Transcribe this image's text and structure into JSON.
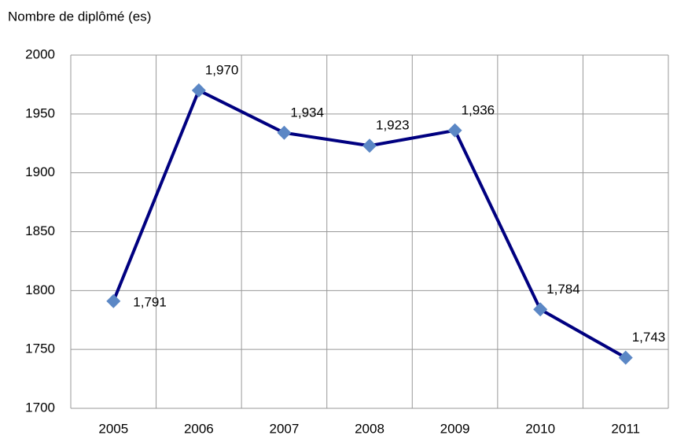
{
  "chart_data": {
    "type": "line",
    "y_label": "Nombre de diplômé (es)",
    "categories": [
      "2005",
      "2006",
      "2007",
      "2008",
      "2009",
      "2010",
      "2011"
    ],
    "series": [
      {
        "name": "Nombre de diplômé (es)",
        "color": "#000080",
        "marker_color": "#5b87c5",
        "values": [
          1791,
          1970,
          1934,
          1923,
          1936,
          1784,
          1743
        ],
        "value_labels": [
          "1,791",
          "1,970",
          "1,934",
          "1,923",
          "1,936",
          "1,784",
          "1,743"
        ]
      }
    ],
    "ylim": [
      1700,
      2000
    ],
    "yticks": [
      1700,
      1750,
      1800,
      1850,
      1900,
      1950,
      2000
    ],
    "grid": true
  }
}
